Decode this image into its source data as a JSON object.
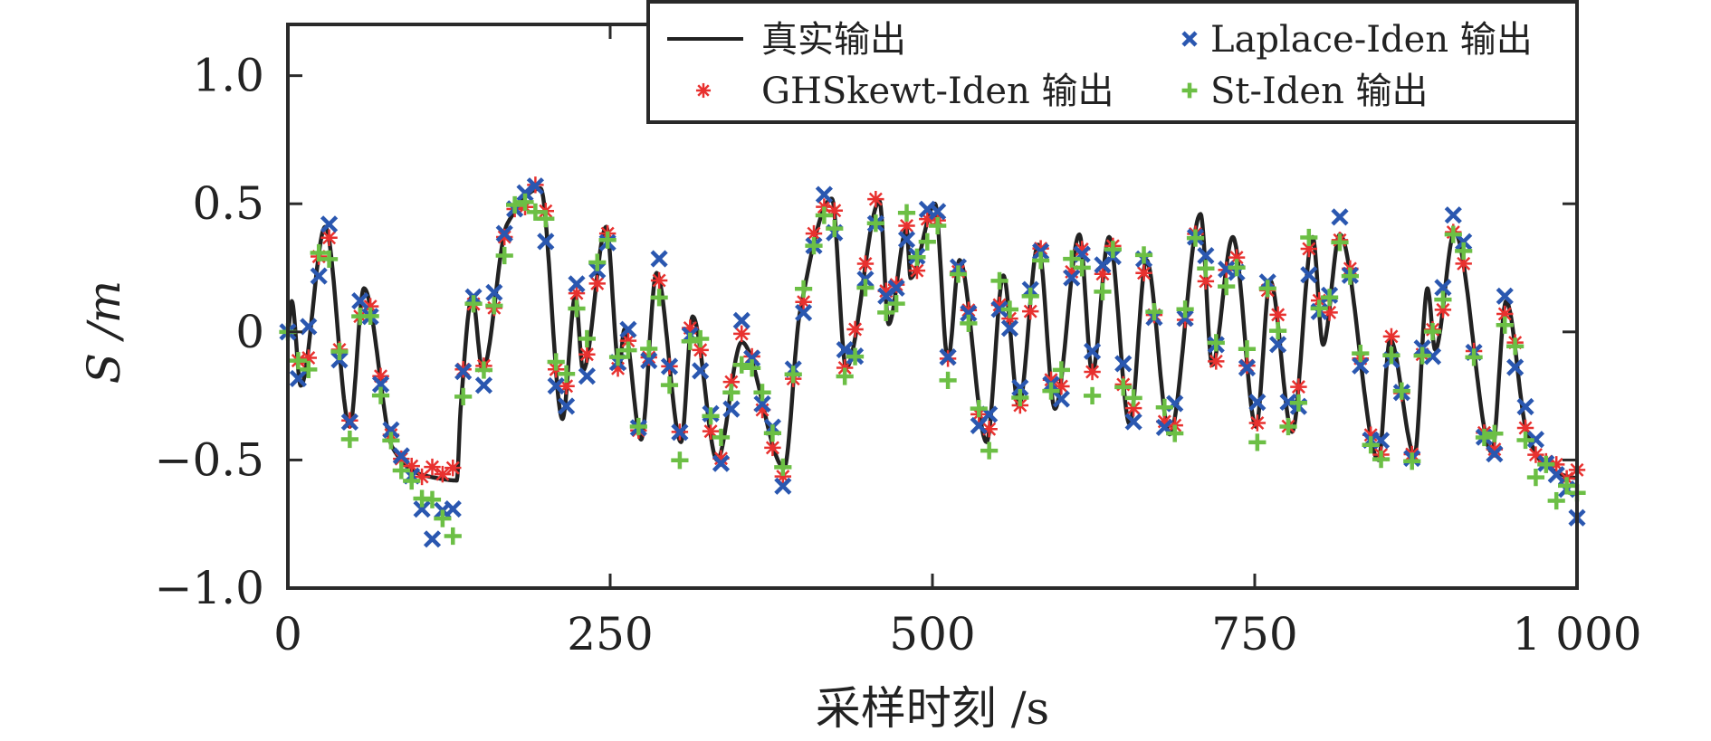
{
  "chart_data": {
    "type": "line",
    "title": "",
    "xlabel": "采样时刻 /s",
    "ylabel": "S /m",
    "xlim": [
      0,
      1000
    ],
    "ylim": [
      -1.0,
      1.2
    ],
    "grid": false,
    "x_ticks": [
      0,
      250,
      500,
      750,
      1000
    ],
    "x_tick_labels": [
      "0",
      "250",
      "500",
      "750",
      "1 000"
    ],
    "y_ticks": [
      1.0,
      0.5,
      0,
      -0.5,
      -1.0
    ],
    "y_tick_labels": [
      "1.0",
      "0.5",
      "0",
      "−0.5",
      "−1.0"
    ],
    "legend_placement": "top-right",
    "legend": [
      {
        "label": "真实输出",
        "style": "line",
        "color": "#222222"
      },
      {
        "label": "Laplace-Iden 输出",
        "style": "x",
        "color": "#2a57b0"
      },
      {
        "label": "GHSkewt-Iden 输出",
        "style": "asterisk",
        "color": "#e8312f"
      },
      {
        "label": "St-Iden 输出",
        "style": "plus",
        "color": "#6cbf45"
      }
    ],
    "true_output": {
      "name": "真实输出",
      "color": "#222222",
      "points": [
        [
          0,
          0
        ],
        [
          3,
          0.12
        ],
        [
          10,
          -0.21
        ],
        [
          29,
          0.41
        ],
        [
          48,
          -0.37
        ],
        [
          59,
          0.17
        ],
        [
          81,
          -0.45
        ],
        [
          100,
          -0.55
        ],
        [
          115,
          -0.57
        ],
        [
          131,
          -0.58
        ],
        [
          134,
          -0.3
        ],
        [
          143,
          0.14
        ],
        [
          151,
          -0.15
        ],
        [
          170,
          0.42
        ],
        [
          196,
          0.56
        ],
        [
          213,
          -0.34
        ],
        [
          223,
          0.14
        ],
        [
          229,
          -0.15
        ],
        [
          247,
          0.41
        ],
        [
          257,
          -0.14
        ],
        [
          261,
          0.01
        ],
        [
          274,
          -0.42
        ],
        [
          286,
          0.23
        ],
        [
          305,
          -0.43
        ],
        [
          314,
          0.06
        ],
        [
          333,
          -0.5
        ],
        [
          352,
          -0.04
        ],
        [
          385,
          -0.53
        ],
        [
          397,
          0.07
        ],
        [
          422,
          0.52
        ],
        [
          433,
          -0.14
        ],
        [
          459,
          0.51
        ],
        [
          466,
          0.03
        ],
        [
          480,
          0.4
        ],
        [
          483,
          0.21
        ],
        [
          502,
          0.5
        ],
        [
          512,
          -0.11
        ],
        [
          521,
          0.28
        ],
        [
          542,
          -0.43
        ],
        [
          555,
          0.22
        ],
        [
          567,
          -0.29
        ],
        [
          582,
          0.34
        ],
        [
          595,
          -0.3
        ],
        [
          614,
          0.38
        ],
        [
          624,
          -0.16
        ],
        [
          637,
          0.37
        ],
        [
          653,
          -0.36
        ],
        [
          666,
          0.28
        ],
        [
          684,
          -0.4
        ],
        [
          708,
          0.46
        ],
        [
          717,
          -0.13
        ],
        [
          733,
          0.37
        ],
        [
          751,
          -0.37
        ],
        [
          762,
          0.2
        ],
        [
          779,
          -0.39
        ],
        [
          795,
          0.37
        ],
        [
          803,
          -0.05
        ],
        [
          816,
          0.38
        ],
        [
          846,
          -0.5
        ],
        [
          855,
          -0.03
        ],
        [
          874,
          -0.48
        ],
        [
          884,
          0.17
        ],
        [
          890,
          -0.07
        ],
        [
          905,
          0.39
        ],
        [
          934,
          -0.47
        ],
        [
          945,
          0.12
        ],
        [
          961,
          -0.39
        ],
        [
          975,
          -0.52
        ],
        [
          1000,
          -0.57
        ]
      ]
    },
    "sample_step": 8,
    "estimated_series": [
      {
        "name": "GHSkewt-Iden 输出",
        "marker": "asterisk",
        "color": "#e8312f",
        "deviation": 0.04,
        "plateau_bias": 0.01,
        "seed": 1.7
      },
      {
        "name": "Laplace-Iden 输出",
        "marker": "x",
        "color": "#2a57b0",
        "deviation": 0.09,
        "plateau_bias": -0.17,
        "seed": 4.3
      },
      {
        "name": "St-Iden 输出",
        "marker": "plus",
        "color": "#6cbf45",
        "deviation": 0.09,
        "plateau_bias": -0.13,
        "seed": 7.9
      }
    ]
  }
}
